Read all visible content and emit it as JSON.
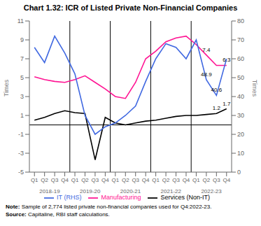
{
  "chart_data": {
    "type": "line",
    "title": "Chart 1.32: ICR of Listed Private Non-Financial Companies",
    "categories": [
      "Q1",
      "Q2",
      "Q3",
      "Q4",
      "Q1",
      "Q2",
      "Q3",
      "Q4",
      "Q1",
      "Q2",
      "Q3",
      "Q4",
      "Q1",
      "Q2",
      "Q3",
      "Q4",
      "Q1",
      "Q2",
      "Q3",
      "Q4"
    ],
    "year_labels": [
      "2018-19",
      "2019-20",
      "2020-21",
      "2021-22",
      "2022-23"
    ],
    "series": [
      {
        "name": "Manufacturing",
        "color": "#FF1493",
        "values": [
          5.1,
          4.8,
          4.6,
          4.5,
          4.8,
          5.2,
          4.5,
          3.8,
          3.0,
          2.8,
          4.5,
          7.0,
          7.8,
          8.8,
          9.2,
          9.4,
          8.5,
          7.4,
          6.3,
          6.3
        ]
      },
      {
        "name": "Services (Non-IT)",
        "color": "#000000",
        "values": [
          0.5,
          0.8,
          1.2,
          1.5,
          1.3,
          1.2,
          -3.7,
          0.8,
          0.2,
          0.0,
          0.2,
          0.4,
          0.5,
          0.7,
          0.9,
          1.0,
          1.0,
          1.1,
          1.2,
          1.7
        ]
      },
      {
        "name": "IT (RHS)",
        "color": "#4169E1",
        "axis": "y2",
        "values": [
          66,
          58,
          72,
          63,
          52,
          30,
          20,
          24,
          26,
          30,
          35,
          48,
          60,
          68,
          66,
          60,
          70,
          48.9,
          40.6,
          60
        ]
      }
    ],
    "ylabel": "Times",
    "y2label": "Times",
    "ylim": [
      -5,
      11
    ],
    "yticks": [
      -5,
      -3,
      -1,
      1,
      3,
      5,
      7,
      9,
      11
    ],
    "y2lim": [
      0,
      80
    ],
    "y2ticks": [
      0,
      10,
      20,
      30,
      40,
      50,
      60,
      70,
      80
    ],
    "annotations": [
      {
        "text": "7.4",
        "series": "Manufacturing",
        "index": 17
      },
      {
        "text": "6.3",
        "series": "Manufacturing",
        "index": 19
      },
      {
        "text": "48.9",
        "series": "IT (RHS)",
        "index": 17
      },
      {
        "text": "40.6",
        "series": "IT (RHS)",
        "index": 18
      },
      {
        "text": "1.2",
        "series": "Services (Non-IT)",
        "index": 18
      },
      {
        "text": "1.7",
        "series": "Services (Non-IT)",
        "index": 19
      }
    ],
    "notes": [
      {
        "bold": "Note:",
        "text": " Sample of 2,774 listed private non-financial companies used for Q4:2022-23."
      },
      {
        "bold": "Source:",
        "text": " Capitaline, RBI staff calculations."
      }
    ],
    "legend": "bottom",
    "grid": false
  }
}
